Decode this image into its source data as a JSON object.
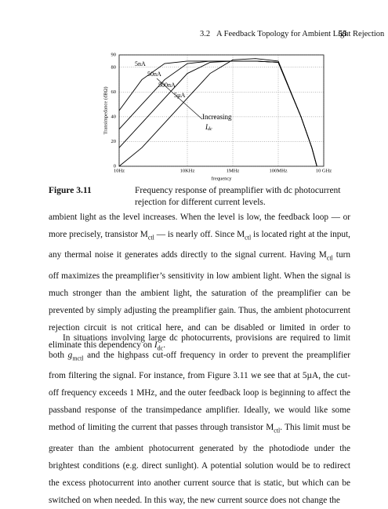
{
  "header": {
    "section": "3.2",
    "title": "A Feedback Topology for Ambient Light Rejection",
    "page": "55"
  },
  "chart_data": {
    "type": "line",
    "xlabel": "frequency",
    "ylabel": "Transimpedance (dBΩ)",
    "x": [
      10,
      100,
      1000,
      10000,
      100000,
      1000000,
      10000000,
      100000000,
      1000000000,
      3000000000,
      5000000000
    ],
    "xlog": true,
    "xlim": [
      10,
      10000000000
    ],
    "xticks": [
      {
        "value": 10,
        "label": "10Hz"
      },
      {
        "value": 10000,
        "label": "10KHz"
      },
      {
        "value": 1000000,
        "label": "1MHz"
      },
      {
        "value": 100000000,
        "label": "100MHz"
      },
      {
        "value": 10000000000,
        "label": "10 GHz"
      }
    ],
    "ylim": [
      0,
      90
    ],
    "yticks": [
      0,
      20,
      40,
      60,
      80,
      90
    ],
    "grid": true,
    "series": [
      {
        "name": "5nA",
        "color": "#000000",
        "values": [
          45,
          70,
          83,
          85,
          85,
          85,
          85,
          84,
          40,
          15,
          0
        ]
      },
      {
        "name": "50nA",
        "color": "#000000",
        "values": [
          30,
          50,
          70,
          83,
          85,
          85,
          85,
          84,
          40,
          15,
          0
        ]
      },
      {
        "name": "500nA",
        "color": "#000000",
        "values": [
          15,
          35,
          55,
          75,
          84,
          85,
          85,
          84,
          40,
          15,
          0
        ]
      },
      {
        "name": "5µA",
        "color": "#000000",
        "values": [
          0,
          15,
          35,
          55,
          75,
          86,
          87,
          85,
          40,
          15,
          0
        ]
      }
    ],
    "annotation": {
      "text": "Increasing",
      "symbol": "I",
      "sub": "dc"
    }
  },
  "caption": {
    "label": "Figure 3.11",
    "text": "Frequency response of preamplifier with dc photocurrent rejection for different current levels."
  },
  "paragraphs": [
    [
      {
        "text": "ambient light as the level increases. When the level is low, the feedback loop — or more precisely, transistor M"
      },
      {
        "sub": "ctl"
      },
      {
        "text": " — is nearly off. Since M"
      },
      {
        "sub": "ctl"
      },
      {
        "text": " is located right at the input, any thermal noise it generates adds directly to the signal current. Having M"
      },
      {
        "sub": "ctl"
      },
      {
        "text": " turn off maximizes the preamplifier’s sensitivity in low ambient light. When the signal is much stronger than the ambient light, the saturation of the preamplifier can be prevented by simply adjusting the preamplifier gain. Thus, the ambient photocurrent rejection circuit is not critical here, and can be disabled or limited in order to eliminate this dependency on "
      },
      {
        "italic": "I",
        "sub": "dc"
      },
      {
        "text": "."
      }
    ],
    [
      {
        "text": "In situations involving large dc photocurrents, provisions are required to limit both "
      },
      {
        "italic": "g",
        "sub": "mctl"
      },
      {
        "text": " and the highpass cut-off frequency in order to prevent the preamplifier from filtering the signal. For instance, from Figure 3.11 we see that at 5µA, the cut-off frequency exceeds 1 MHz, and the outer feedback loop is beginning to affect the passband response of the transimpedance amplifier. Ideally, we would like some method of limiting the current that passes through transistor M"
      },
      {
        "sub": "ctl"
      },
      {
        "text": ". This limit must be greater than the ambient photocurrent generated by the photodiode under the brightest conditions (e.g. direct sunlight). A potential solution would be to redirect the excess photocurrent into another current source that is static, but which can be switched on when needed. In this way, the new current source does not change the"
      }
    ]
  ]
}
